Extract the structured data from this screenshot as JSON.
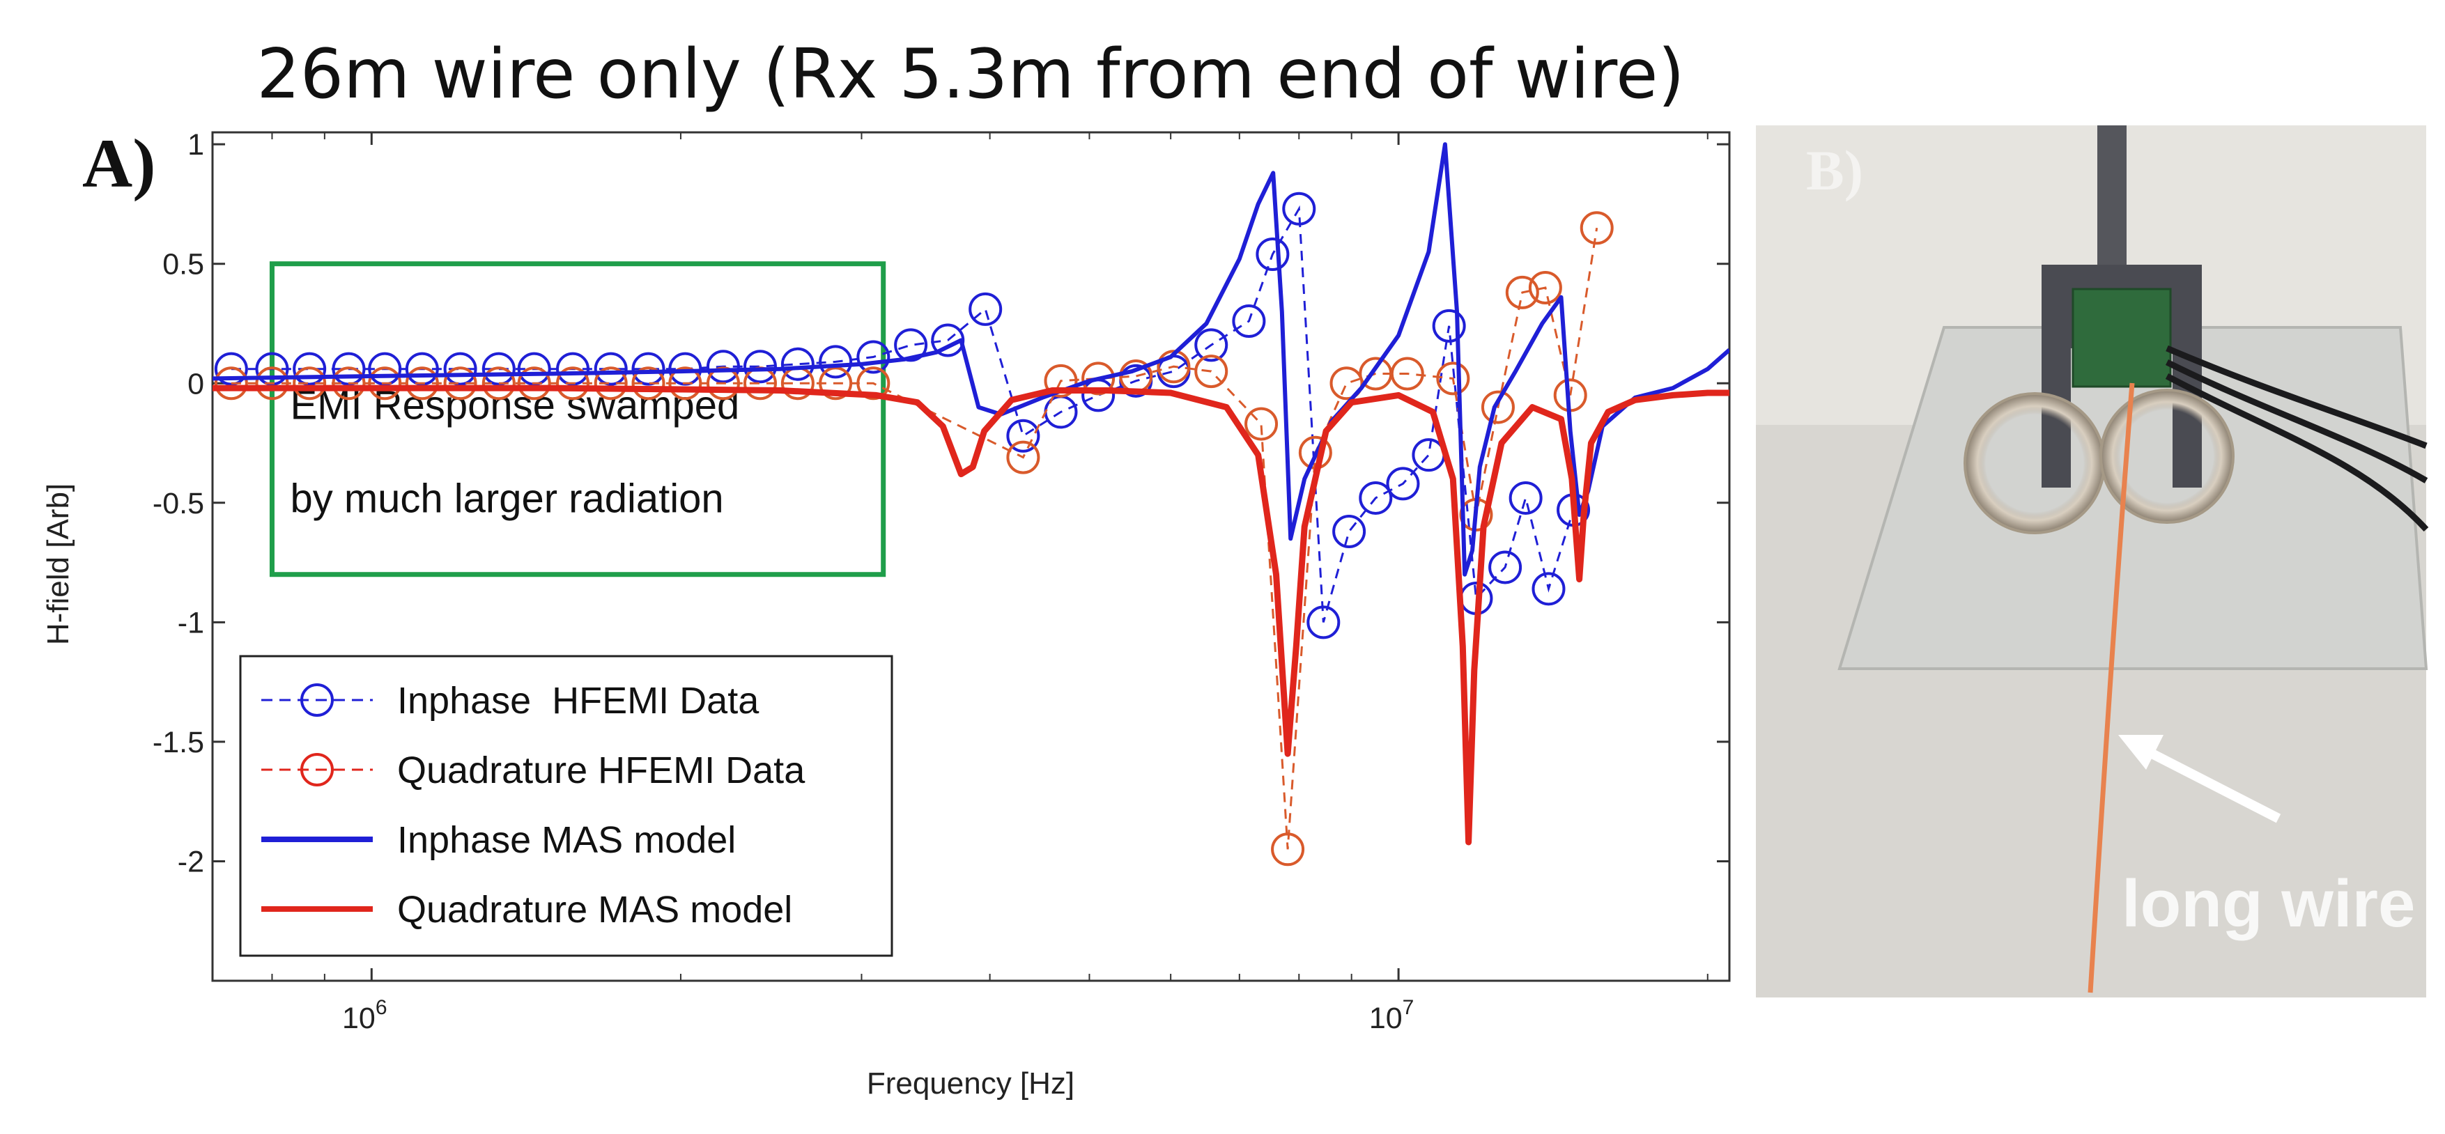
{
  "figure": {
    "title": "26m wire only (Rx 5.3m from end of wire)",
    "panel_a_label": "A)",
    "panel_b_label": "B)",
    "photo_annotation": "long wire"
  },
  "colors": {
    "inphase": "#1f1fd6",
    "quadrature": "#e0261c",
    "quad_marker": "#d95a2b",
    "box": "#1f9e4a",
    "axis": "#333333"
  },
  "chart_data": {
    "type": "line",
    "title": "26m wire only (Rx 5.3m from end of wire)",
    "xlabel": "Frequency [Hz]",
    "ylabel": "H-field [Arb]",
    "xscale": "log",
    "xlim": [
      700000,
      21000000
    ],
    "ylim": [
      -2.5,
      1.05
    ],
    "xticks": [
      {
        "value": 1000000,
        "base": "10",
        "exp": "6"
      },
      {
        "value": 10000000,
        "base": "10",
        "exp": "7"
      }
    ],
    "yticks": [
      {
        "value": 1,
        "label": "1"
      },
      {
        "value": 0.5,
        "label": "0.5"
      },
      {
        "value": 0,
        "label": "0"
      },
      {
        "value": -0.5,
        "label": "-0.5"
      },
      {
        "value": -1,
        "label": "-1"
      },
      {
        "value": -1.5,
        "label": "-1.5"
      },
      {
        "value": -2,
        "label": "-2"
      }
    ],
    "legend_position": "bottom-left",
    "annotation": {
      "lines": [
        "EMI Response swamped",
        "by much larger radiation"
      ],
      "x_range": [
        800000,
        3150000
      ],
      "y_range": [
        -0.8,
        0.5
      ]
    },
    "series": [
      {
        "name": "Inphase  HFEMI Data",
        "style": "dashed-circle",
        "color_key": "inphase",
        "x": [
          730000,
          800000,
          870000,
          950000,
          1030000,
          1120000,
          1220000,
          1330000,
          1440000,
          1570000,
          1710000,
          1860000,
          2020000,
          2200000,
          2390000,
          2600000,
          2830000,
          3080000,
          3350000,
          3640000,
          3960000,
          4310000,
          4690000,
          5100000,
          5550000,
          6040000,
          6570000,
          7150000,
          7540000,
          8000000,
          8450000,
          8950000,
          9500000,
          10100000,
          10700000,
          11200000,
          11900000,
          12700000,
          13300000,
          14000000,
          14800000
        ],
        "y": [
          0.06,
          0.06,
          0.06,
          0.06,
          0.06,
          0.06,
          0.06,
          0.06,
          0.06,
          0.06,
          0.06,
          0.06,
          0.06,
          0.07,
          0.07,
          0.08,
          0.09,
          0.11,
          0.16,
          0.18,
          0.31,
          -0.22,
          -0.12,
          -0.05,
          0.01,
          0.05,
          0.16,
          0.26,
          0.54,
          0.73,
          -1.0,
          -0.62,
          -0.48,
          -0.42,
          -0.3,
          0.24,
          -0.9,
          -0.77,
          -0.48,
          -0.86,
          -0.53
        ]
      },
      {
        "name": "Quadrature HFEMI Data",
        "style": "dashed-circle",
        "color_key": "quad_marker",
        "x": [
          730000,
          800000,
          870000,
          950000,
          1030000,
          1120000,
          1220000,
          1330000,
          1440000,
          1570000,
          1710000,
          1860000,
          2020000,
          2200000,
          2390000,
          2600000,
          2830000,
          3080000,
          4310000,
          4690000,
          5100000,
          5550000,
          6040000,
          6570000,
          7350000,
          7800000,
          8300000,
          8900000,
          9500000,
          10200000,
          11300000,
          11900000,
          12500000,
          13200000,
          13900000,
          14700000,
          15600000
        ],
        "y": [
          0.0,
          0.0,
          0.0,
          0.0,
          0.0,
          0.0,
          0.0,
          0.0,
          0.0,
          0.0,
          0.0,
          0.0,
          0.0,
          0.0,
          0.0,
          0.0,
          0.0,
          0.0,
          -0.31,
          0.01,
          0.02,
          0.03,
          0.07,
          0.05,
          -0.17,
          -1.95,
          -0.29,
          -0.0,
          0.04,
          0.04,
          0.02,
          -0.55,
          -0.1,
          0.38,
          0.4,
          -0.05,
          0.65
        ]
      },
      {
        "name": "Inphase MAS model",
        "style": "solid",
        "color_key": "inphase",
        "x": [
          700000,
          1000000,
          1500000,
          2000000,
          2500000,
          3000000,
          3300000,
          3550000,
          3750000,
          3900000,
          4100000,
          4500000,
          5000000,
          5500000,
          6000000,
          6500000,
          7000000,
          7300000,
          7550000,
          7700000,
          7850000,
          8100000,
          8600000,
          9200000,
          10000000,
          10700000,
          11100000,
          11400000,
          11600000,
          11800000,
          12000000,
          12400000,
          13000000,
          13800000,
          14400000,
          14700000,
          15000000,
          15300000,
          15800000,
          17000000,
          18500000,
          20000000,
          21000000
        ],
        "y": [
          0.02,
          0.03,
          0.04,
          0.05,
          0.06,
          0.08,
          0.1,
          0.13,
          0.18,
          -0.1,
          -0.13,
          -0.06,
          0.01,
          0.05,
          0.11,
          0.25,
          0.52,
          0.75,
          0.88,
          0.3,
          -0.65,
          -0.4,
          -0.16,
          -0.02,
          0.2,
          0.55,
          1.0,
          0.3,
          -0.8,
          -0.7,
          -0.35,
          -0.1,
          0.05,
          0.25,
          0.36,
          -0.2,
          -0.55,
          -0.45,
          -0.18,
          -0.06,
          -0.02,
          0.06,
          0.14
        ]
      },
      {
        "name": "Quadrature MAS model",
        "style": "solid",
        "color_key": "quadrature",
        "x": [
          700000,
          1500000,
          2500000,
          3100000,
          3400000,
          3600000,
          3750000,
          3850000,
          3950000,
          4200000,
          4600000,
          5200000,
          6000000,
          6800000,
          7300000,
          7600000,
          7800000,
          7950000,
          8100000,
          8500000,
          9000000,
          10000000,
          10800000,
          11300000,
          11550000,
          11700000,
          11850000,
          12100000,
          12600000,
          13500000,
          14400000,
          14750000,
          15000000,
          15150000,
          15400000,
          16000000,
          17000000,
          18500000,
          20000000,
          21000000
        ],
        "y": [
          -0.02,
          -0.02,
          -0.03,
          -0.05,
          -0.08,
          -0.18,
          -0.38,
          -0.35,
          -0.2,
          -0.07,
          -0.03,
          -0.03,
          -0.04,
          -0.1,
          -0.3,
          -0.8,
          -1.55,
          -1.1,
          -0.6,
          -0.2,
          -0.08,
          -0.05,
          -0.12,
          -0.4,
          -1.1,
          -1.92,
          -1.2,
          -0.6,
          -0.25,
          -0.1,
          -0.15,
          -0.4,
          -0.82,
          -0.55,
          -0.25,
          -0.12,
          -0.07,
          -0.05,
          -0.04,
          -0.04
        ]
      }
    ]
  }
}
